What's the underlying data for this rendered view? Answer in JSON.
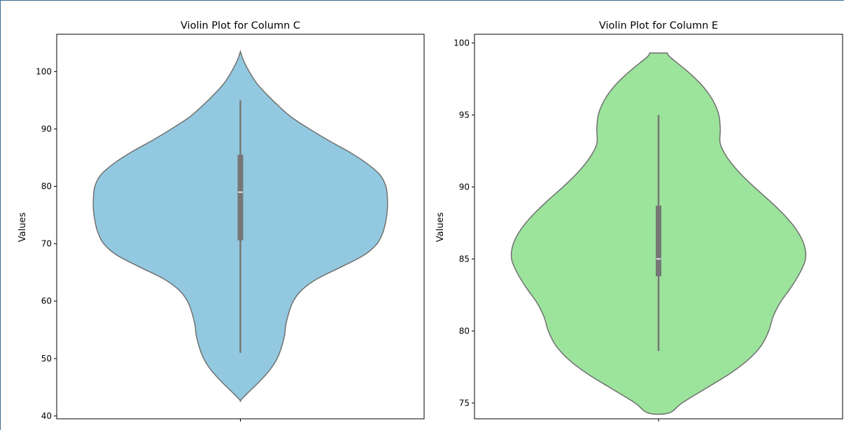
{
  "colors": {
    "border": "#3d6a8f",
    "violin_edge": "#707070",
    "box": "#767676",
    "median": "#ffffff"
  },
  "chart_data": [
    {
      "type": "violin",
      "title": "Violin Plot for Column C",
      "ylabel": "Values",
      "xlabel": "",
      "ylim": [
        39.5,
        106.5
      ],
      "yticks": [
        40,
        50,
        60,
        70,
        80,
        90,
        100
      ],
      "fill": "#93c9e0",
      "grid": false,
      "stats": {
        "min": 51,
        "q1": 70.6,
        "median": 79,
        "q3": 85.5,
        "max": 95
      },
      "kde_extent": [
        42.7,
        103.5
      ],
      "density": [
        [
          42.7,
          0
        ],
        [
          44,
          0.05
        ],
        [
          46,
          0.13
        ],
        [
          48,
          0.2
        ],
        [
          50,
          0.25
        ],
        [
          52,
          0.28
        ],
        [
          54,
          0.3
        ],
        [
          56,
          0.31
        ],
        [
          58,
          0.33
        ],
        [
          60,
          0.36
        ],
        [
          62,
          0.42
        ],
        [
          64,
          0.53
        ],
        [
          66,
          0.69
        ],
        [
          68,
          0.84
        ],
        [
          70,
          0.93
        ],
        [
          72,
          0.97
        ],
        [
          74,
          0.99
        ],
        [
          76,
          1.0
        ],
        [
          78,
          1.0
        ],
        [
          80,
          0.99
        ],
        [
          82,
          0.95
        ],
        [
          84,
          0.86
        ],
        [
          86,
          0.74
        ],
        [
          88,
          0.6
        ],
        [
          90,
          0.47
        ],
        [
          92,
          0.35
        ],
        [
          94,
          0.26
        ],
        [
          96,
          0.18
        ],
        [
          98,
          0.11
        ],
        [
          100,
          0.06
        ],
        [
          102,
          0.02
        ],
        [
          103.5,
          0
        ]
      ]
    },
    {
      "type": "violin",
      "title": "Violin Plot for Column E",
      "ylabel": "Values",
      "xlabel": "",
      "ylim": [
        73.9,
        100.6
      ],
      "yticks": [
        75,
        80,
        85,
        90,
        95,
        100
      ],
      "fill": "#9ce39c",
      "grid": false,
      "stats": {
        "min": 78.6,
        "q1": 83.8,
        "median": 85,
        "q3": 88.7,
        "max": 95
      },
      "kde_extent": [
        74.3,
        99.3
      ],
      "density": [
        [
          74.3,
          0.07
        ],
        [
          75,
          0.16
        ],
        [
          76,
          0.32
        ],
        [
          77,
          0.48
        ],
        [
          78,
          0.61
        ],
        [
          79,
          0.7
        ],
        [
          80,
          0.75
        ],
        [
          81,
          0.78
        ],
        [
          82,
          0.83
        ],
        [
          83,
          0.9
        ],
        [
          84,
          0.96
        ],
        [
          85,
          1.0
        ],
        [
          86,
          0.99
        ],
        [
          87,
          0.94
        ],
        [
          88,
          0.86
        ],
        [
          89,
          0.76
        ],
        [
          90,
          0.65
        ],
        [
          91,
          0.55
        ],
        [
          92,
          0.47
        ],
        [
          93,
          0.42
        ],
        [
          94,
          0.42
        ],
        [
          95,
          0.41
        ],
        [
          96,
          0.37
        ],
        [
          97,
          0.3
        ],
        [
          98,
          0.2
        ],
        [
          99,
          0.08
        ],
        [
          99.3,
          0.06
        ]
      ]
    }
  ]
}
